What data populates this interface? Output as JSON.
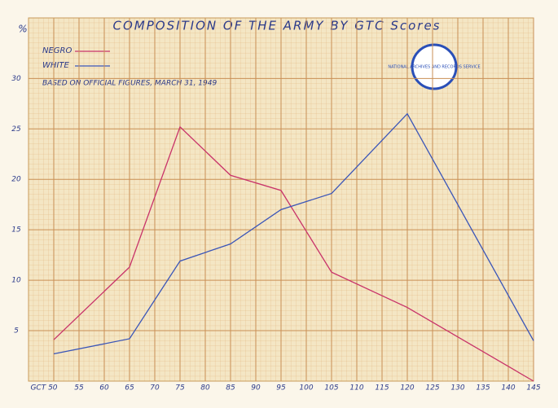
{
  "chart_data": {
    "type": "line",
    "title": "COMPOSITION OF THE ARMY BY GTC Scores",
    "y_label": "%",
    "note": "BASED ON OFFICIAL FIGURES, MARCH 31, 1949",
    "stamp": "NATIONAL ARCHIVES AND RECORDS SERVICE",
    "x": [
      50,
      65,
      75,
      85,
      95,
      105,
      120,
      145
    ],
    "series": [
      {
        "name": "NEGRO",
        "color": "#c8336a",
        "values": [
          4.1,
          11.3,
          25.2,
          20.4,
          18.9,
          10.8,
          7.3,
          0
        ]
      },
      {
        "name": "WHITE",
        "color": "#3a55b8",
        "values": [
          2.7,
          4.2,
          11.9,
          13.6,
          17.0,
          18.6,
          26.5,
          4.0
        ]
      }
    ],
    "xlim": [
      45,
      145
    ],
    "ylim": [
      0,
      36
    ],
    "xticks": [
      {
        "value": 50,
        "label": "GCT 50"
      },
      55,
      60,
      65,
      70,
      75,
      80,
      85,
      90,
      95,
      100,
      105,
      110,
      115,
      120,
      125,
      130,
      135,
      140,
      145
    ],
    "yticks": [
      5,
      10,
      15,
      20,
      25,
      30
    ],
    "grid": true
  }
}
